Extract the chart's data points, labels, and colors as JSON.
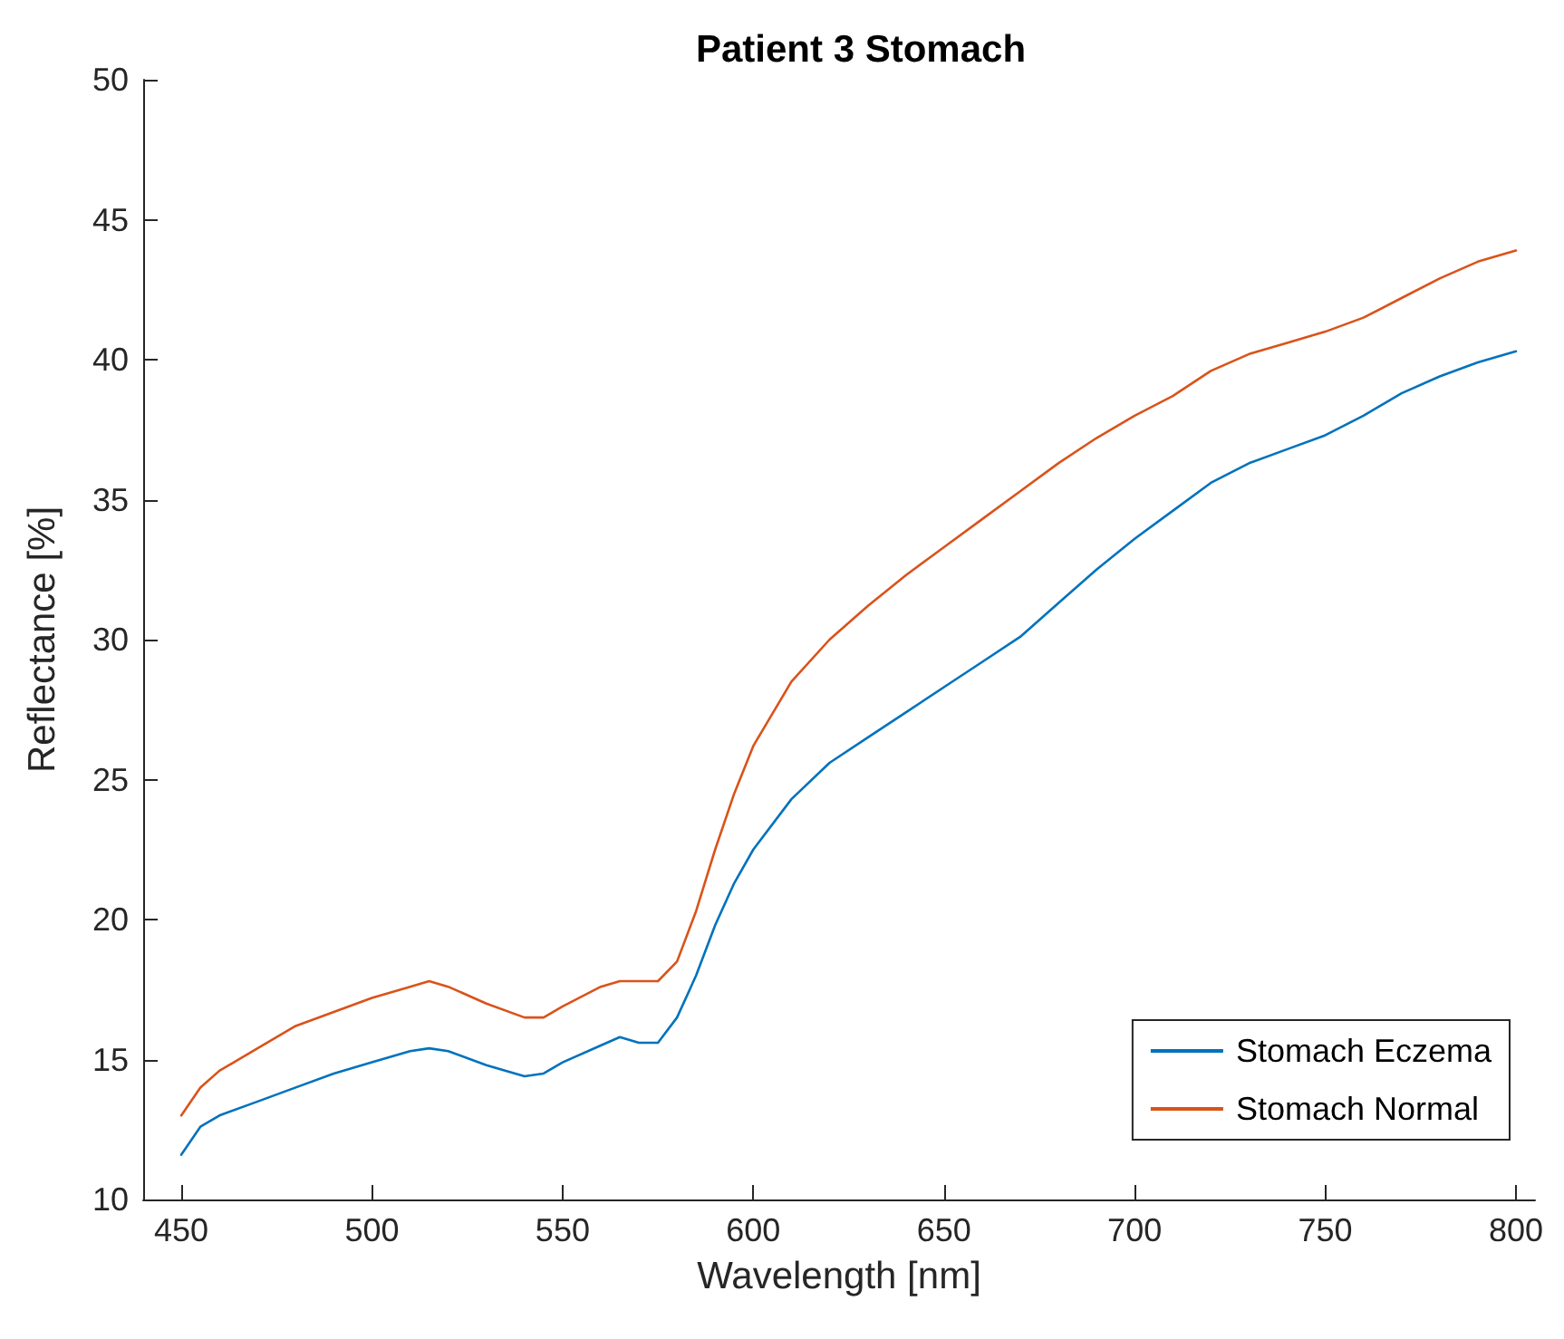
{
  "chart_data": {
    "type": "line",
    "title": "Patient 3 Stomach",
    "xlabel": "Wavelength [nm]",
    "ylabel": "Reflectance [%]",
    "x": [
      450,
      455,
      460,
      470,
      480,
      490,
      500,
      510,
      515,
      520,
      530,
      540,
      545,
      550,
      560,
      565,
      570,
      575,
      580,
      585,
      590,
      595,
      600,
      610,
      620,
      630,
      640,
      650,
      660,
      670,
      680,
      690,
      700,
      710,
      720,
      730,
      740,
      750,
      760,
      770,
      780,
      790,
      800
    ],
    "series": [
      {
        "name": "Stomach Eczema",
        "color": "#0072bd",
        "values": [
          11.6,
          12.6,
          13.0,
          13.5,
          14.0,
          14.5,
          14.9,
          15.3,
          15.4,
          15.3,
          14.8,
          14.4,
          14.5,
          14.9,
          15.5,
          15.8,
          15.6,
          15.6,
          16.5,
          18.0,
          19.8,
          21.3,
          22.5,
          24.3,
          25.6,
          26.5,
          27.4,
          28.3,
          29.2,
          30.1,
          31.3,
          32.5,
          33.6,
          34.6,
          35.6,
          36.3,
          36.8,
          37.3,
          38.0,
          38.8,
          39.4,
          39.9,
          40.3
        ]
      },
      {
        "name": "Stomach Normal",
        "color": "#d95319",
        "values": [
          13.0,
          14.0,
          14.6,
          15.4,
          16.2,
          16.7,
          17.2,
          17.6,
          17.8,
          17.6,
          17.0,
          16.5,
          16.5,
          16.9,
          17.6,
          17.8,
          17.8,
          17.8,
          18.5,
          20.3,
          22.5,
          24.5,
          26.2,
          28.5,
          30.0,
          31.2,
          32.3,
          33.3,
          34.3,
          35.3,
          36.3,
          37.2,
          38.0,
          38.7,
          39.6,
          40.2,
          40.6,
          41.0,
          41.5,
          42.2,
          42.9,
          43.5,
          43.9
        ]
      }
    ],
    "xlim": [
      440,
      805
    ],
    "xticks": [
      450,
      500,
      550,
      600,
      650,
      700,
      750,
      800
    ],
    "ylim": [
      10,
      50
    ],
    "yticks": [
      10,
      15,
      20,
      25,
      30,
      35,
      40,
      45,
      50
    ],
    "grid": false,
    "legend": "bottom right",
    "marker": "none",
    "line_style": "solid"
  }
}
